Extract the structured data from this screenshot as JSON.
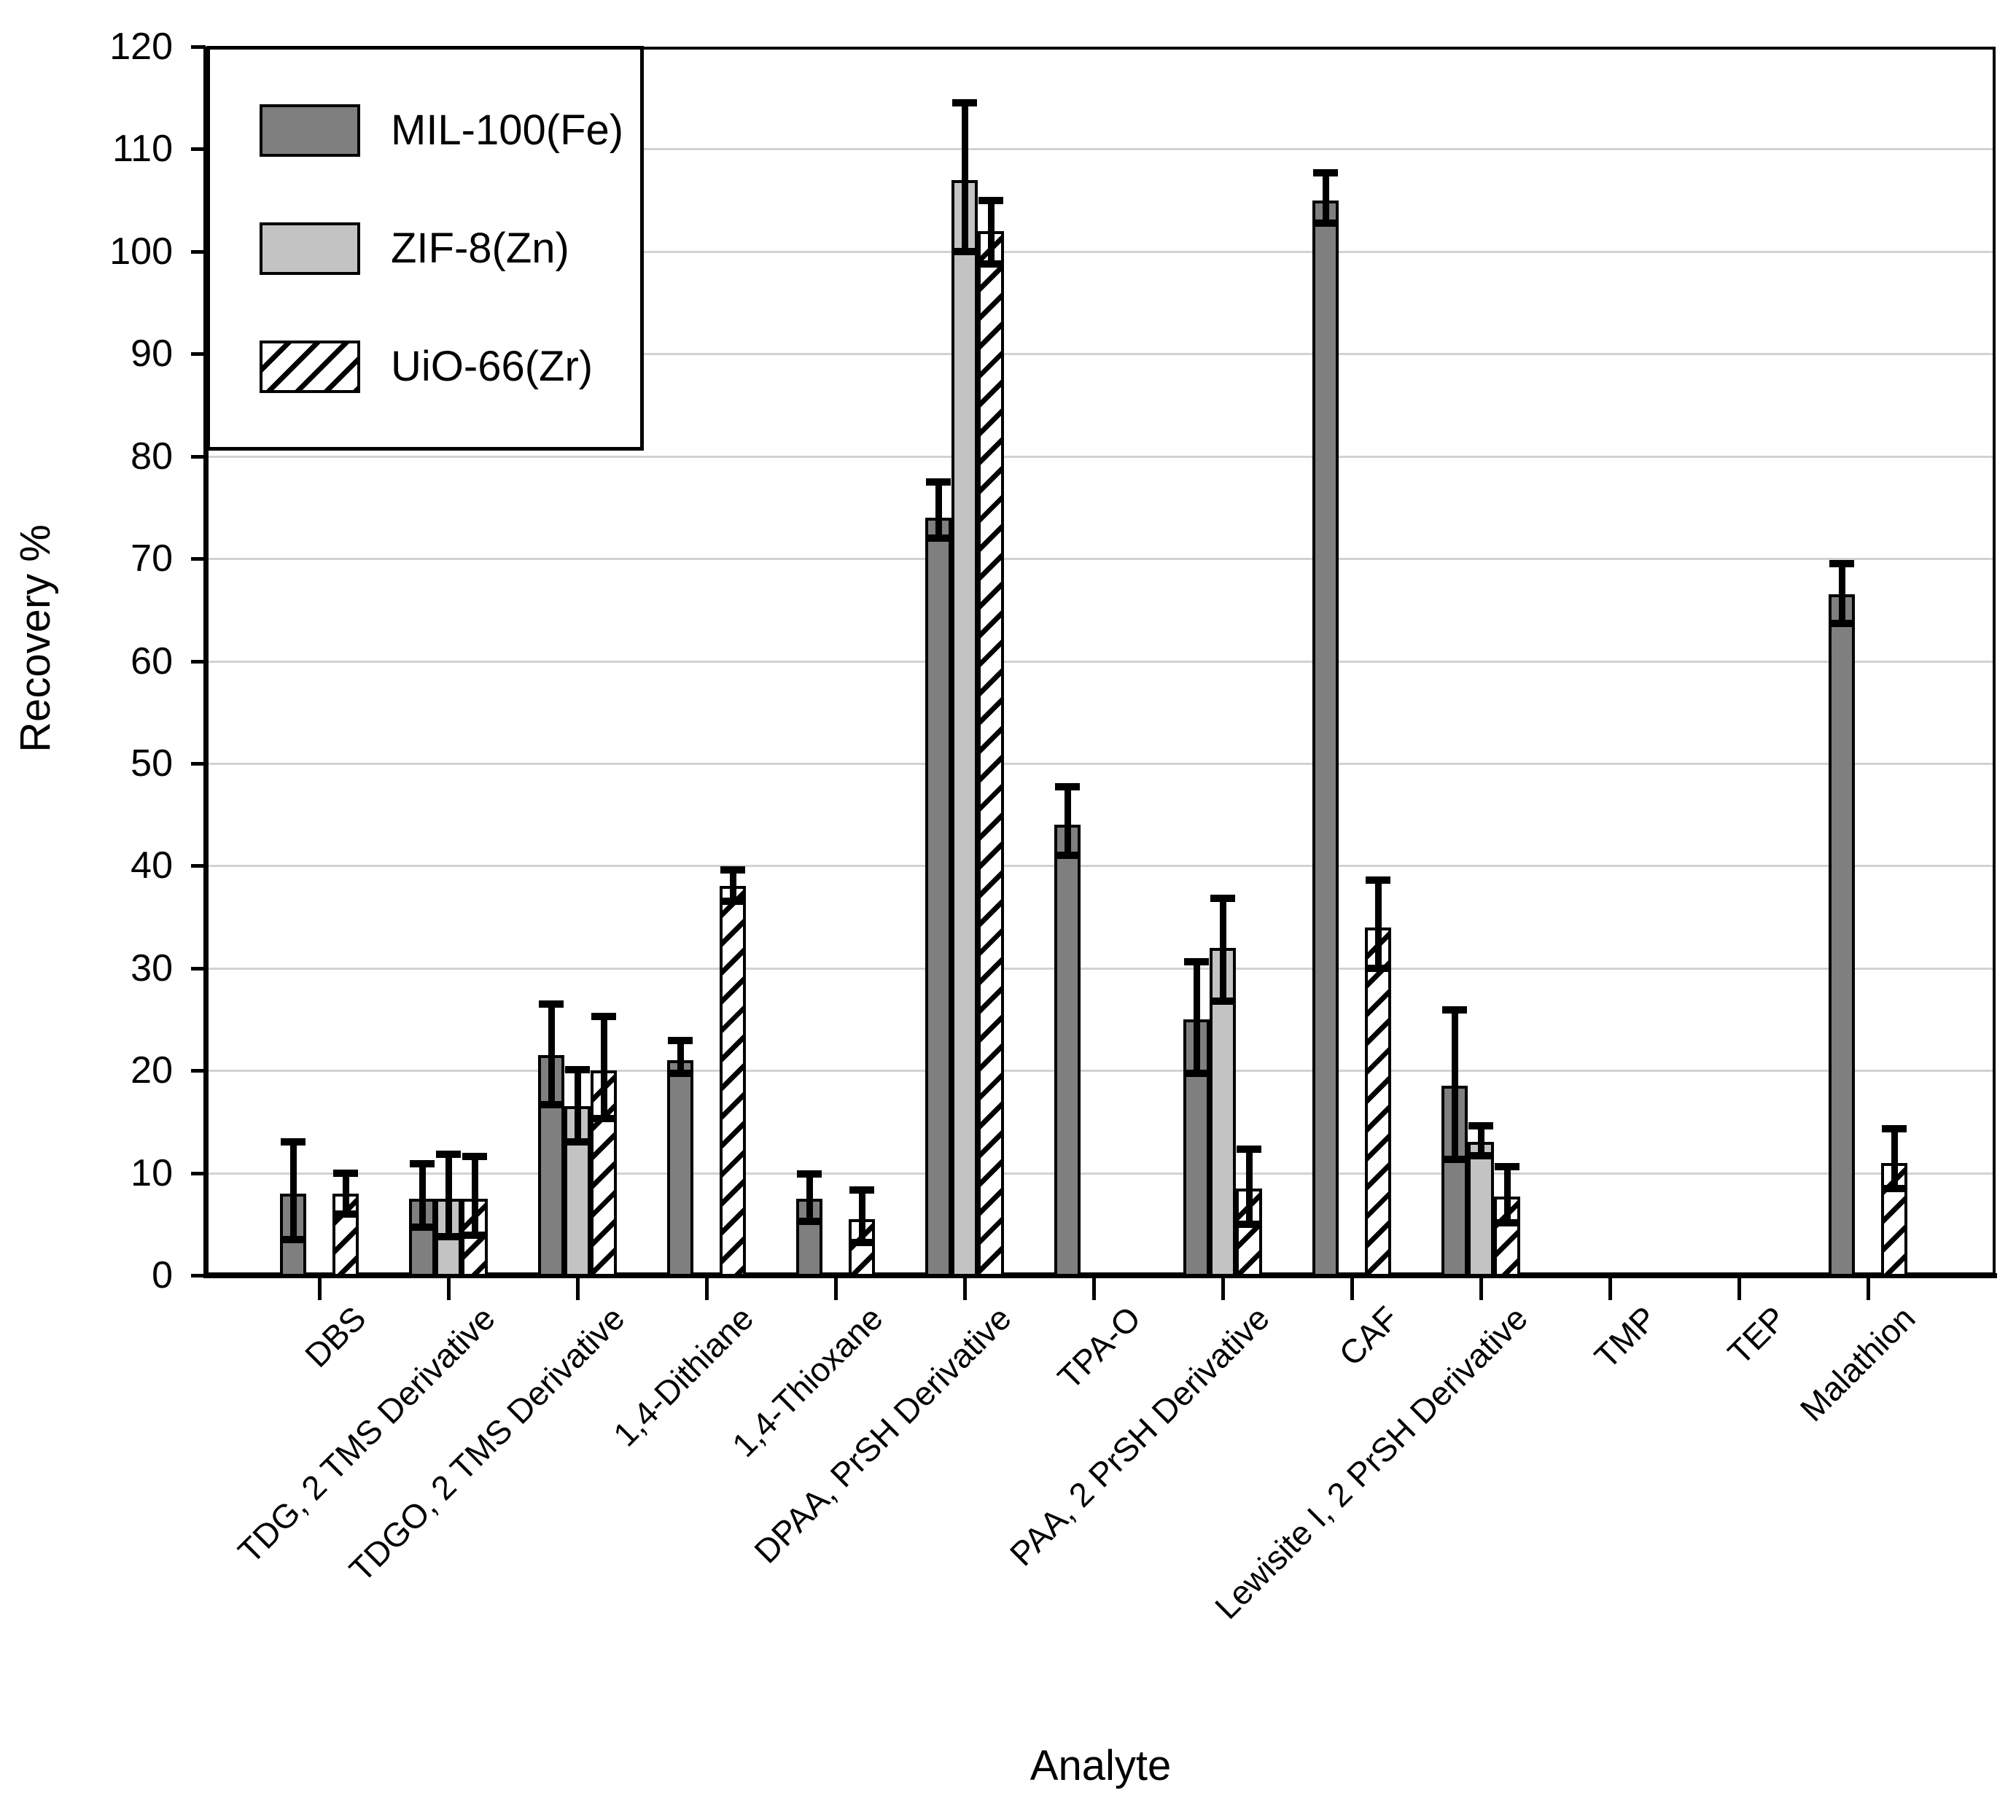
{
  "chart_data": {
    "type": "bar",
    "title": "",
    "xlabel": "Analyte",
    "ylabel": "Recovery %",
    "ylim": [
      0,
      120
    ],
    "ytick_step": 10,
    "grid": "horizontal-gridlines-every-10",
    "legend_position": "top-left-inside",
    "categories": [
      "DBS",
      "TDG, 2 TMS Derivative",
      "TDGO, 2 TMS Derivative",
      "1,4-Dithiane",
      "1,4-Thioxane",
      "DPAA, PrSH Derivative",
      "TPA-O",
      "PAA, 2 PrSH Derivative",
      "CAF",
      "Lewisite I, 2 PrSH Derivative",
      "TMP",
      "TEP",
      "Malathion"
    ],
    "series": [
      {
        "name": "MIL-100(Fe)",
        "fill": "#7f7f7f",
        "pattern": "solid-dark",
        "values": [
          8,
          7.5,
          21.5,
          21,
          7.5,
          74,
          44,
          25,
          105,
          18.5,
          null,
          null,
          66.5
        ],
        "err_minus": [
          4.5,
          2.8,
          4.8,
          1.3,
          2.2,
          2,
          3,
          5.3,
          2.2,
          7.2,
          null,
          null,
          2.8
        ],
        "err_plus": [
          5,
          3.4,
          5,
          1.9,
          2.4,
          3.5,
          3.7,
          5.6,
          2.7,
          7.4,
          null,
          null,
          3
        ]
      },
      {
        "name": "ZIF-8(Zn)",
        "fill": "#c3c3c3",
        "pattern": "solid-light",
        "values": [
          null,
          7.5,
          16.5,
          null,
          null,
          107,
          null,
          32,
          null,
          13,
          null,
          null,
          null
        ],
        "err_minus": [
          null,
          3.7,
          3.5,
          null,
          null,
          7,
          null,
          5.2,
          null,
          1.3,
          null,
          null,
          null
        ],
        "err_plus": [
          null,
          4.3,
          3.6,
          null,
          null,
          7.5,
          null,
          4.8,
          null,
          1.6,
          null,
          null,
          null
        ]
      },
      {
        "name": "UiO-66(Zr)",
        "fill": "#ffffff",
        "pattern": "diagonal-hatch",
        "values": [
          8,
          7.5,
          20,
          38,
          5.5,
          102,
          null,
          8.5,
          34,
          7.7,
          null,
          null,
          11
        ],
        "err_minus": [
          2,
          3.6,
          4.7,
          1.5,
          2.3,
          3.2,
          null,
          3.5,
          4,
          2.6,
          null,
          null,
          2.5
        ],
        "err_plus": [
          2,
          4.1,
          5.3,
          1.6,
          2.8,
          3,
          null,
          3.8,
          4.6,
          2.9,
          null,
          null,
          3.3
        ]
      }
    ]
  },
  "colors": {
    "background": "#ffffff",
    "bar_outline": "#000000",
    "error_bar": "#000000",
    "gridline": "#d2d2d2",
    "series_dark_gray": "#7f7f7f",
    "series_light_gray": "#c3c3c3",
    "series_hatch_white": "#ffffff"
  }
}
